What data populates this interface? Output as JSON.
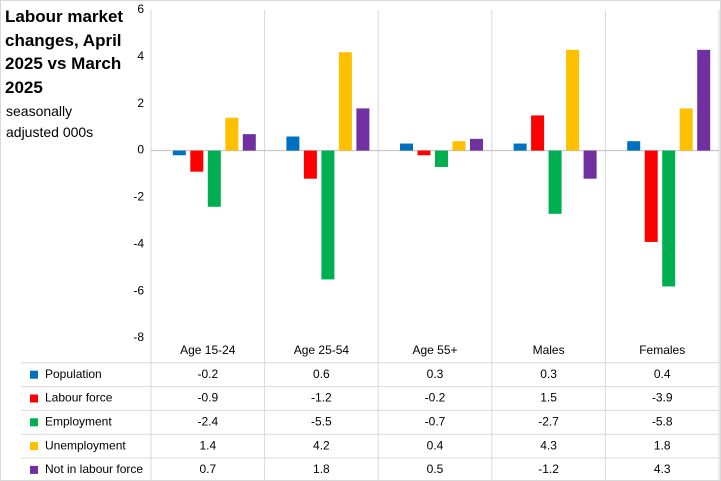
{
  "chart_data": {
    "type": "bar",
    "title": "Labour market changes, April 2025 vs March 2025",
    "subtitle": "seasonally adjusted 000s",
    "categories": [
      "Age 15-24",
      "Age 25-54",
      "Age 55+",
      "Males",
      "Females"
    ],
    "series": [
      {
        "name": "Population",
        "color": "#0070c0",
        "values": [
          -0.2,
          0.6,
          0.3,
          0.3,
          0.4
        ]
      },
      {
        "name": "Labour force",
        "color": "#ff0000",
        "values": [
          -0.9,
          -1.2,
          -0.2,
          1.5,
          -3.9
        ]
      },
      {
        "name": "Employment",
        "color": "#00b050",
        "values": [
          -2.4,
          -5.5,
          -0.7,
          -2.7,
          -5.8
        ]
      },
      {
        "name": "Unemployment",
        "color": "#ffc000",
        "values": [
          1.4,
          4.2,
          0.4,
          4.3,
          1.8
        ]
      },
      {
        "name": "Not in labour force",
        "color": "#7030a0",
        "values": [
          0.7,
          1.8,
          0.5,
          -1.2,
          4.3
        ]
      }
    ],
    "ylim": [
      -8,
      6
    ],
    "yticks": [
      -8,
      -6,
      -4,
      -2,
      0,
      2,
      4,
      6
    ],
    "grid": false
  }
}
